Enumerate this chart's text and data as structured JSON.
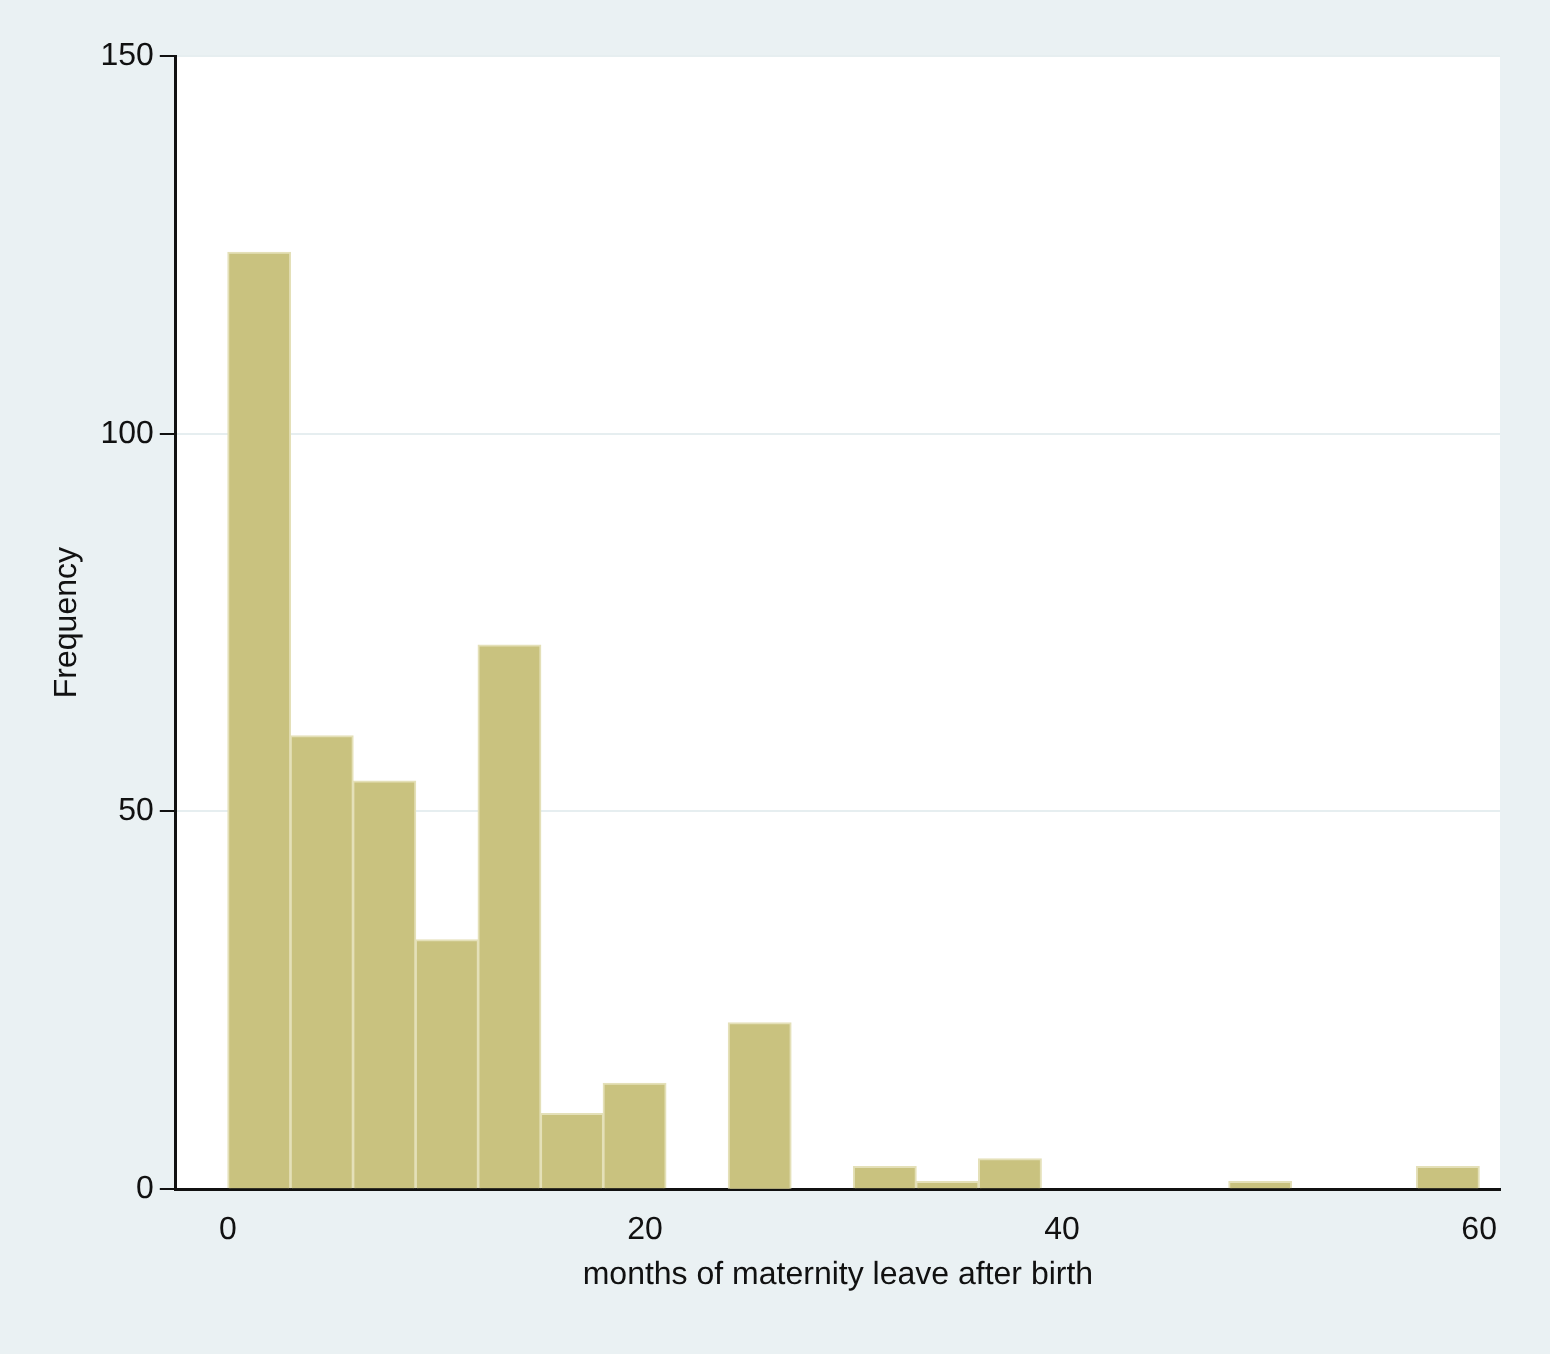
{
  "chart_data": {
    "type": "histogram",
    "xlabel": "months of maternity leave after birth",
    "ylabel": "Frequency",
    "bins": [
      0,
      3,
      6,
      9,
      12,
      15,
      18,
      21,
      24,
      27,
      30,
      33,
      36,
      39,
      42,
      45,
      48,
      51,
      54,
      57,
      60
    ],
    "values": [
      124,
      60,
      54,
      33,
      72,
      10,
      14,
      0,
      22,
      0,
      3,
      1,
      4,
      0,
      0,
      0,
      1,
      0,
      0,
      3
    ],
    "color": "#c9c27f",
    "xlim": [
      -2.5,
      61
    ],
    "xticks": [
      0,
      20,
      40,
      60
    ],
    "ylim": [
      0,
      150
    ],
    "yticks": [
      0,
      50,
      100,
      150
    ],
    "grid": "y",
    "legend": false
  }
}
